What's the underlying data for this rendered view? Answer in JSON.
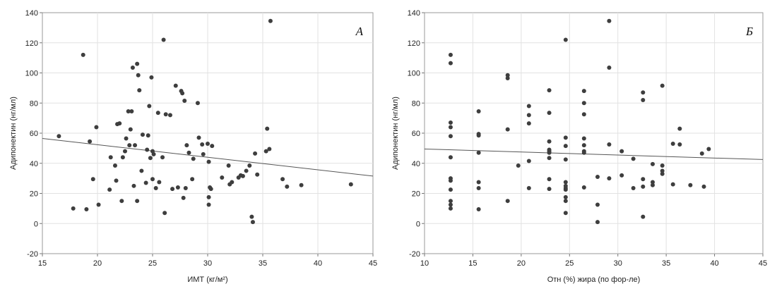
{
  "chart_data": [
    {
      "type": "scatter",
      "panel_label": "А",
      "xlabel": "ИМТ (кг/м²)",
      "ylabel": "Адипонектин (нг/мл)",
      "xlim": [
        15,
        45
      ],
      "ylim": [
        -20,
        140
      ],
      "xticks": [
        "15",
        "20",
        "25",
        "30",
        "35",
        "40",
        "45"
      ],
      "yticks": [
        "-20",
        "0",
        "20",
        "40",
        "60",
        "80",
        "100",
        "120",
        "140"
      ],
      "grid": true,
      "trendline": {
        "x": [
          15,
          45
        ],
        "y": [
          56.5,
          31.5
        ]
      },
      "points": [
        [
          16.5,
          58
        ],
        [
          17.8,
          10
        ],
        [
          18.7,
          112
        ],
        [
          19.0,
          9.5
        ],
        [
          19.3,
          54.5
        ],
        [
          19.6,
          29.5
        ],
        [
          19.9,
          64
        ],
        [
          20.1,
          12.5
        ],
        [
          21.1,
          22.5
        ],
        [
          21.2,
          44
        ],
        [
          21.6,
          38.5
        ],
        [
          21.7,
          28.5
        ],
        [
          21.8,
          66
        ],
        [
          22.0,
          66.5
        ],
        [
          22.2,
          15
        ],
        [
          22.3,
          44
        ],
        [
          22.5,
          48
        ],
        [
          22.6,
          56.5
        ],
        [
          22.8,
          74.5
        ],
        [
          22.9,
          52
        ],
        [
          23.0,
          62.5
        ],
        [
          23.1,
          74.5
        ],
        [
          23.2,
          103.5
        ],
        [
          23.3,
          25
        ],
        [
          23.4,
          52
        ],
        [
          23.6,
          106
        ],
        [
          23.6,
          15
        ],
        [
          23.7,
          98.5
        ],
        [
          23.8,
          88.5
        ],
        [
          24.0,
          35
        ],
        [
          24.1,
          59
        ],
        [
          24.4,
          27
        ],
        [
          24.5,
          49
        ],
        [
          24.6,
          58.5
        ],
        [
          24.7,
          78
        ],
        [
          24.8,
          43.5
        ],
        [
          24.9,
          97
        ],
        [
          25.0,
          29.5
        ],
        [
          25.0,
          48
        ],
        [
          25.1,
          46
        ],
        [
          25.3,
          23.5
        ],
        [
          25.5,
          73.5
        ],
        [
          25.6,
          27.5
        ],
        [
          25.9,
          44
        ],
        [
          26.0,
          122
        ],
        [
          26.1,
          7
        ],
        [
          26.2,
          72.5
        ],
        [
          26.6,
          72
        ],
        [
          26.8,
          23
        ],
        [
          27.1,
          91.5
        ],
        [
          27.3,
          24
        ],
        [
          27.6,
          88
        ],
        [
          27.7,
          86.5
        ],
        [
          27.8,
          17
        ],
        [
          27.9,
          81.5
        ],
        [
          28.0,
          23.5
        ],
        [
          28.1,
          52
        ],
        [
          28.3,
          47
        ],
        [
          28.6,
          29.5
        ],
        [
          28.7,
          43
        ],
        [
          29.1,
          80
        ],
        [
          29.2,
          57
        ],
        [
          29.5,
          52.5
        ],
        [
          29.6,
          46
        ],
        [
          30.0,
          53
        ],
        [
          30.1,
          41
        ],
        [
          30.1,
          17.5
        ],
        [
          30.1,
          12.5
        ],
        [
          30.2,
          24
        ],
        [
          30.3,
          23
        ],
        [
          30.4,
          51.5
        ],
        [
          31.3,
          30.5
        ],
        [
          31.9,
          38.5
        ],
        [
          32.0,
          26
        ],
        [
          32.2,
          27.5
        ],
        [
          32.8,
          30.5
        ],
        [
          33.0,
          32
        ],
        [
          33.2,
          31.5
        ],
        [
          33.5,
          35
        ],
        [
          33.8,
          38.5
        ],
        [
          34.0,
          4.5
        ],
        [
          34.1,
          1
        ],
        [
          34.3,
          46.5
        ],
        [
          34.5,
          32.5
        ],
        [
          35.3,
          48
        ],
        [
          35.4,
          63
        ],
        [
          35.6,
          49.5
        ],
        [
          35.7,
          134.5
        ],
        [
          36.8,
          29.5
        ],
        [
          37.2,
          24.5
        ],
        [
          38.5,
          25.5
        ],
        [
          43.0,
          26
        ]
      ]
    },
    {
      "type": "scatter",
      "panel_label": "Б",
      "xlabel": "Отн (%) жира (по фор-ле)",
      "ylabel": "Адипонектин (нг/мл)",
      "xlim": [
        10,
        45
      ],
      "ylim": [
        -20,
        140
      ],
      "xticks": [
        "10",
        "15",
        "20",
        "25",
        "30",
        "35",
        "40",
        "45"
      ],
      "yticks": [
        "-20",
        "0",
        "20",
        "40",
        "60",
        "80",
        "100",
        "120",
        "140"
      ],
      "grid": true,
      "trendline": {
        "x": [
          10,
          45
        ],
        "y": [
          49.5,
          42.5
        ]
      },
      "points": [
        [
          12.7,
          112
        ],
        [
          12.7,
          106.5
        ],
        [
          12.7,
          67
        ],
        [
          12.7,
          64
        ],
        [
          12.7,
          58
        ],
        [
          12.7,
          44
        ],
        [
          12.7,
          30
        ],
        [
          12.7,
          28.5
        ],
        [
          12.7,
          22.5
        ],
        [
          12.7,
          15
        ],
        [
          12.7,
          12.5
        ],
        [
          12.7,
          10
        ],
        [
          15.6,
          74.5
        ],
        [
          15.6,
          59.5
        ],
        [
          15.6,
          58.5
        ],
        [
          15.6,
          47
        ],
        [
          15.6,
          27.5
        ],
        [
          15.6,
          23.5
        ],
        [
          15.6,
          9.5
        ],
        [
          18.6,
          98.5
        ],
        [
          18.6,
          96.5
        ],
        [
          18.6,
          62.5
        ],
        [
          18.6,
          15
        ],
        [
          19.7,
          38.5
        ],
        [
          20.8,
          78
        ],
        [
          20.8,
          72
        ],
        [
          20.8,
          66.5
        ],
        [
          20.8,
          41.5
        ],
        [
          20.8,
          23.5
        ],
        [
          22.9,
          88.5
        ],
        [
          22.9,
          73.5
        ],
        [
          22.9,
          54.5
        ],
        [
          22.9,
          49
        ],
        [
          22.9,
          48
        ],
        [
          22.9,
          47
        ],
        [
          22.9,
          43.5
        ],
        [
          22.9,
          29.5
        ],
        [
          22.9,
          23
        ],
        [
          24.6,
          122
        ],
        [
          24.6,
          57
        ],
        [
          24.6,
          51.5
        ],
        [
          24.6,
          42.5
        ],
        [
          24.6,
          27.5
        ],
        [
          24.6,
          25
        ],
        [
          24.6,
          23.5
        ],
        [
          24.6,
          22.5
        ],
        [
          24.6,
          17.5
        ],
        [
          24.6,
          15
        ],
        [
          24.6,
          7
        ],
        [
          26.5,
          88
        ],
        [
          26.5,
          80
        ],
        [
          26.5,
          72.5
        ],
        [
          26.5,
          56.5
        ],
        [
          26.5,
          52
        ],
        [
          26.5,
          48
        ],
        [
          26.5,
          47
        ],
        [
          26.5,
          24
        ],
        [
          27.9,
          31
        ],
        [
          27.9,
          12.5
        ],
        [
          27.9,
          1
        ],
        [
          29.1,
          134.5
        ],
        [
          29.1,
          103.5
        ],
        [
          29.1,
          52.5
        ],
        [
          29.1,
          30
        ],
        [
          30.4,
          48
        ],
        [
          30.4,
          32
        ],
        [
          31.6,
          43
        ],
        [
          31.6,
          23.5
        ],
        [
          32.6,
          87
        ],
        [
          32.6,
          82
        ],
        [
          32.6,
          29.5
        ],
        [
          32.6,
          24.5
        ],
        [
          32.6,
          4.5
        ],
        [
          33.6,
          39.5
        ],
        [
          33.6,
          27.5
        ],
        [
          33.6,
          25.5
        ],
        [
          34.6,
          91.5
        ],
        [
          34.6,
          38.5
        ],
        [
          34.6,
          35
        ],
        [
          34.6,
          33
        ],
        [
          35.7,
          53
        ],
        [
          35.7,
          26
        ],
        [
          36.4,
          63
        ],
        [
          36.4,
          52.5
        ],
        [
          37.5,
          25.5
        ],
        [
          38.7,
          46.5
        ],
        [
          38.9,
          24.5
        ],
        [
          39.4,
          49.5
        ]
      ]
    }
  ]
}
